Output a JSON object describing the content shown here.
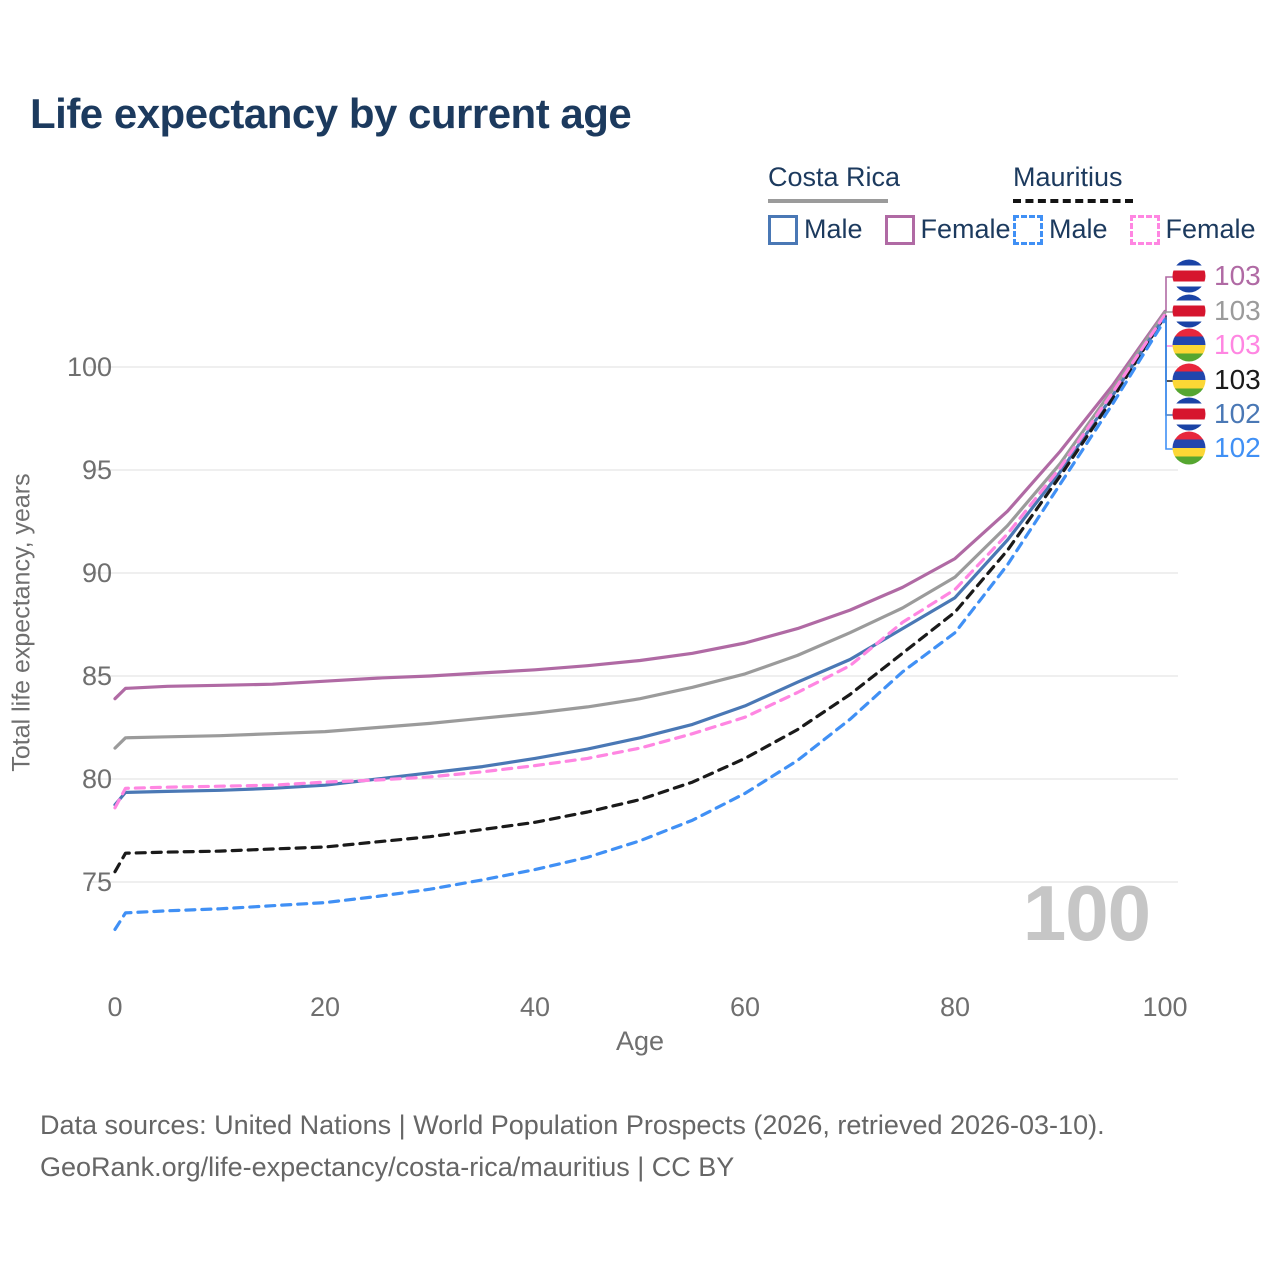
{
  "title": "Life expectancy by current age",
  "watermark": "100",
  "legend": {
    "groups": [
      {
        "title": "Costa Rica",
        "line_style": "solid",
        "line_color": "#9b9b9b",
        "items": [
          {
            "label": "Male",
            "swatch_color": "#4a78b5",
            "swatch_style": "solid"
          },
          {
            "label": "Female",
            "swatch_color": "#b06aa4",
            "swatch_style": "solid"
          }
        ]
      },
      {
        "title": "Mauritius",
        "line_style": "dashed",
        "line_color": "#141414",
        "items": [
          {
            "label": "Male",
            "swatch_color": "#4090f5",
            "swatch_style": "dashed"
          },
          {
            "label": "Female",
            "swatch_color": "#ff86e2",
            "swatch_style": "dashed"
          }
        ]
      }
    ]
  },
  "chart_data": {
    "type": "line",
    "title": "Life expectancy by current age",
    "xlabel": "Age",
    "ylabel": "Total life expectancy, years",
    "xlim": [
      0,
      100
    ],
    "ylim": [
      72,
      103.5
    ],
    "xticks": [
      0,
      20,
      40,
      60,
      80,
      100
    ],
    "yticks": [
      75,
      80,
      85,
      90,
      95,
      100
    ],
    "grid": "horizontal",
    "legend_position": "top-right",
    "ages": [
      0,
      1,
      5,
      10,
      15,
      20,
      25,
      30,
      35,
      40,
      45,
      50,
      55,
      60,
      65,
      70,
      75,
      80,
      85,
      90,
      95,
      100
    ],
    "series": [
      {
        "name": "Costa Rica Female",
        "country": "Costa Rica",
        "sex": "Female",
        "color": "#b06aa4",
        "dash": "solid",
        "values": [
          83.9,
          84.4,
          84.5,
          84.55,
          84.6,
          84.75,
          84.9,
          85.0,
          85.15,
          85.3,
          85.5,
          85.75,
          86.1,
          86.6,
          87.3,
          88.2,
          89.3,
          90.7,
          93.0,
          95.9,
          99.1,
          102.7
        ]
      },
      {
        "name": "Costa Rica Both sexes",
        "country": "Costa Rica",
        "sex": "Both",
        "color": "#9b9b9b",
        "dash": "solid",
        "values": [
          81.5,
          82.0,
          82.05,
          82.1,
          82.2,
          82.3,
          82.5,
          82.7,
          82.95,
          83.2,
          83.5,
          83.9,
          84.45,
          85.1,
          86.0,
          87.1,
          88.3,
          89.8,
          92.3,
          95.3,
          98.9,
          102.65
        ]
      },
      {
        "name": "Costa Rica Male",
        "country": "Costa Rica",
        "sex": "Male",
        "color": "#4a78b5",
        "dash": "solid",
        "values": [
          78.75,
          79.35,
          79.4,
          79.45,
          79.55,
          79.7,
          80.0,
          80.3,
          80.6,
          81.0,
          81.45,
          82.0,
          82.65,
          83.55,
          84.7,
          85.8,
          87.3,
          88.8,
          91.6,
          94.9,
          98.6,
          102.45
        ]
      },
      {
        "name": "Mauritius Both sexes",
        "country": "Mauritius",
        "sex": "Both",
        "color": "#1a1a1a",
        "dash": "dashed",
        "values": [
          75.5,
          76.4,
          76.45,
          76.5,
          76.6,
          76.7,
          76.95,
          77.2,
          77.55,
          77.9,
          78.4,
          79.0,
          79.85,
          81.0,
          82.4,
          84.1,
          86.1,
          88.1,
          91.1,
          94.7,
          98.45,
          102.5
        ]
      },
      {
        "name": "Mauritius Female",
        "country": "Mauritius",
        "sex": "Female",
        "color": "#ff86e2",
        "dash": "dashed",
        "values": [
          78.6,
          79.55,
          79.6,
          79.65,
          79.7,
          79.85,
          79.95,
          80.1,
          80.35,
          80.65,
          81.0,
          81.5,
          82.2,
          83.0,
          84.2,
          85.5,
          87.6,
          89.2,
          91.9,
          95.1,
          98.75,
          102.55
        ]
      },
      {
        "name": "Mauritius Male",
        "country": "Mauritius",
        "sex": "Male",
        "color": "#4090f5",
        "dash": "dashed",
        "values": [
          72.7,
          73.5,
          73.6,
          73.7,
          73.85,
          74.0,
          74.3,
          74.65,
          75.1,
          75.6,
          76.2,
          77.0,
          78.0,
          79.3,
          80.9,
          82.9,
          85.2,
          87.1,
          90.4,
          94.3,
          98.2,
          102.3
        ]
      }
    ],
    "end_labels": [
      {
        "series": "Costa Rica Female",
        "flag": "costa-rica",
        "value": "103",
        "color": "#b06aa4"
      },
      {
        "series": "Costa Rica Both sexes",
        "flag": "costa-rica",
        "value": "103",
        "color": "#9b9b9b"
      },
      {
        "series": "Mauritius Female",
        "flag": "mauritius",
        "value": "103",
        "color": "#ff86e2"
      },
      {
        "series": "Mauritius Both sexes",
        "flag": "mauritius",
        "value": "103",
        "color": "#1a1a1a"
      },
      {
        "series": "Costa Rica Male",
        "flag": "costa-rica",
        "value": "102",
        "color": "#4a78b5"
      },
      {
        "series": "Mauritius Male",
        "flag": "mauritius",
        "value": "102",
        "color": "#4090f5"
      }
    ]
  },
  "flag_colors": {
    "costa_rica": [
      "#1a43a6",
      "#ffffff",
      "#d6152e",
      "#ffffff",
      "#1a43a6"
    ],
    "mauritius": [
      "#e8273c",
      "#2246ad",
      "#fcd735",
      "#55a630"
    ]
  },
  "footer": {
    "line1": "Data sources: United Nations | World Population Prospects (2026, retrieved 2026-03-10).",
    "line2": "GeoRank.org/life-expectancy/costa-rica/mauritius | CC BY"
  }
}
